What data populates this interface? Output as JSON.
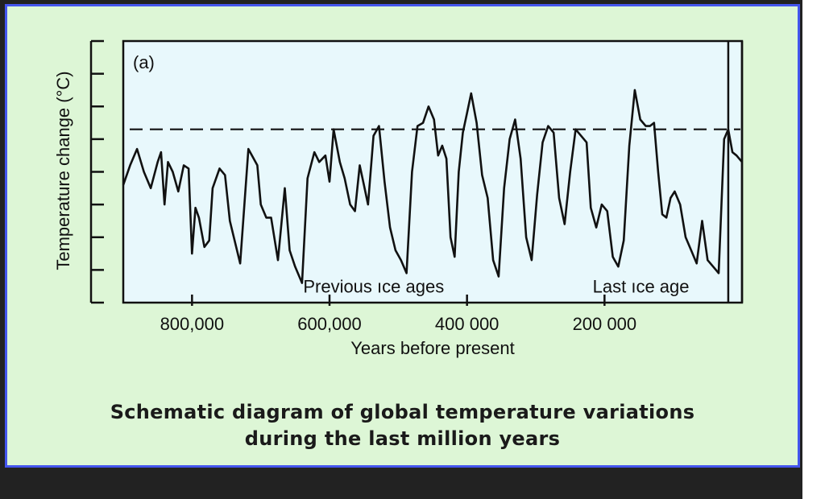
{
  "caption": {
    "line1": "Schematic diagram of global temperature variations",
    "line2": "during the last million years"
  },
  "colors": {
    "frame_border": "#4455ee",
    "frame_bg": "#ddf6d6",
    "plot_bg": "#e8f8fc",
    "line": "#111111"
  },
  "chart_data": {
    "type": "line",
    "panel_label": "(a)",
    "title": "",
    "xlabel": "Years before present",
    "ylabel": "Temperature change (°C)",
    "x_reversed": true,
    "xlim": [
      900000,
      0
    ],
    "ylim": [
      0,
      8
    ],
    "x_ticks": [
      800000,
      600000,
      400000,
      200000
    ],
    "x_tick_labels": [
      "800,000",
      "600,000",
      "400 000",
      "200 000"
    ],
    "y_tick_labels_shown": false,
    "reference_line": {
      "y": 5.3,
      "style": "dashed"
    },
    "annotations": [
      {
        "text": "Previous ıce ages",
        "x": 500000,
        "y": 0.6
      },
      {
        "text": "Last ıce age",
        "x": 100000,
        "y": 0.6
      }
    ],
    "highlight_band": {
      "x_start": 20000,
      "x_end": 0
    },
    "series": [
      {
        "x": [
          900000,
          890000,
          880000,
          870000,
          860000,
          850000,
          845000,
          840000,
          835000,
          828000,
          820000,
          812000,
          805000,
          800000,
          795000,
          790000,
          782000,
          775000,
          770000,
          760000,
          752000,
          745000,
          730000,
          718000,
          705000,
          700000,
          692000,
          685000,
          675000,
          665000,
          658000,
          650000,
          640000,
          632000,
          622000,
          615000,
          606000,
          600000,
          594000,
          585000,
          578000,
          570000,
          563000,
          556000,
          550000,
          544000,
          536000,
          528000,
          520000,
          512000,
          504000,
          496000,
          488000,
          480000,
          472000,
          464000,
          456000,
          448000,
          442000,
          436000,
          430000,
          424000,
          418000,
          412000,
          406000,
          400000,
          394000,
          386000,
          378000,
          370000,
          362000,
          354000,
          346000,
          338000,
          330000,
          322000,
          314000,
          306000,
          298000,
          290000,
          282000,
          274000,
          266000,
          258000,
          250000,
          242000,
          234000,
          226000,
          220000,
          212000,
          204000,
          196000,
          188000,
          180000,
          172000,
          164000,
          156000,
          148000,
          140000,
          134000,
          128000,
          122000,
          116000,
          110000,
          104000,
          98000,
          90000,
          82000,
          74000,
          66000,
          58000,
          50000,
          42000,
          34000,
          26000,
          20000,
          14000,
          8000,
          0
        ],
        "y": [
          3.6,
          4.2,
          4.7,
          4.0,
          3.5,
          4.3,
          4.6,
          3.0,
          4.3,
          4.0,
          3.4,
          4.2,
          4.1,
          1.5,
          2.9,
          2.6,
          1.7,
          1.9,
          3.5,
          4.1,
          3.9,
          2.5,
          1.2,
          4.7,
          4.2,
          3.0,
          2.6,
          2.6,
          1.3,
          3.5,
          1.6,
          1.1,
          0.6,
          3.8,
          4.6,
          4.3,
          4.5,
          3.7,
          5.3,
          4.3,
          3.8,
          3.0,
          2.8,
          4.2,
          3.6,
          3.0,
          5.1,
          5.4,
          3.7,
          2.3,
          1.6,
          1.3,
          0.9,
          4.0,
          5.4,
          5.5,
          6.0,
          5.6,
          4.5,
          4.8,
          4.4,
          2.0,
          1.4,
          4.0,
          5.2,
          5.8,
          6.4,
          5.5,
          3.9,
          3.2,
          1.3,
          0.8,
          3.5,
          5.0,
          5.6,
          4.4,
          2.0,
          1.3,
          3.3,
          4.9,
          5.4,
          5.2,
          3.2,
          2.4,
          4.0,
          5.3,
          5.1,
          4.9,
          2.9,
          2.3,
          3.0,
          2.8,
          1.4,
          1.1,
          1.9,
          4.8,
          6.5,
          5.6,
          5.4,
          5.4,
          5.5,
          4.0,
          2.7,
          2.6,
          3.2,
          3.4,
          3.0,
          2.0,
          1.6,
          1.2,
          2.5,
          1.3,
          1.1,
          0.9,
          5.0,
          5.3,
          4.6,
          4.5,
          4.3
        ]
      }
    ]
  }
}
